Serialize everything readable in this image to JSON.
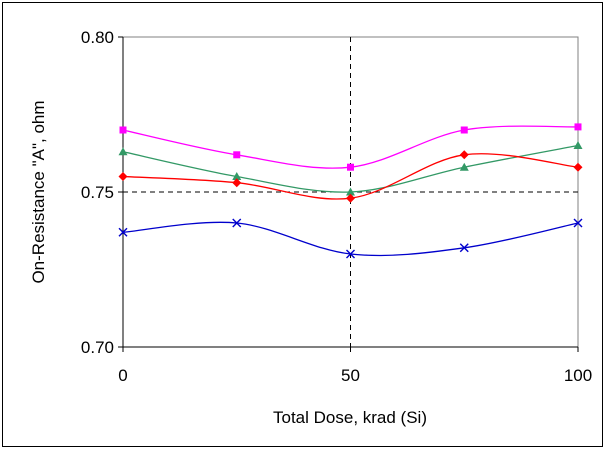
{
  "chart_data": {
    "type": "line",
    "title": "",
    "xlabel": "Total Dose, krad (Si)",
    "ylabel": "On-Resistance \"A\", ohm",
    "xlim": [
      0,
      100
    ],
    "ylim": [
      0.7,
      0.8
    ],
    "x_ticks": [
      0,
      50,
      100
    ],
    "y_ticks": [
      0.7,
      0.75,
      0.8
    ],
    "x_tick_labels": [
      "0",
      "50",
      "100"
    ],
    "y_tick_labels": [
      "0.70",
      "0.75",
      "0.80"
    ],
    "grid": "dashed reference lines at x=50 and y=0.75",
    "legend": "none",
    "x": [
      0,
      25,
      50,
      75,
      100
    ],
    "series": [
      {
        "color": "#ff00ff",
        "marker": "square",
        "values": [
          0.77,
          0.762,
          0.758,
          0.77,
          0.771
        ]
      },
      {
        "color": "#339966",
        "marker": "triangle",
        "values": [
          0.763,
          0.755,
          0.75,
          0.758,
          0.765
        ]
      },
      {
        "color": "#ff0000",
        "marker": "diamond",
        "values": [
          0.755,
          0.753,
          0.748,
          0.762,
          0.758
        ]
      },
      {
        "color": "#0000cc",
        "marker": "x",
        "values": [
          0.737,
          0.74,
          0.73,
          0.732,
          0.74
        ]
      }
    ]
  }
}
